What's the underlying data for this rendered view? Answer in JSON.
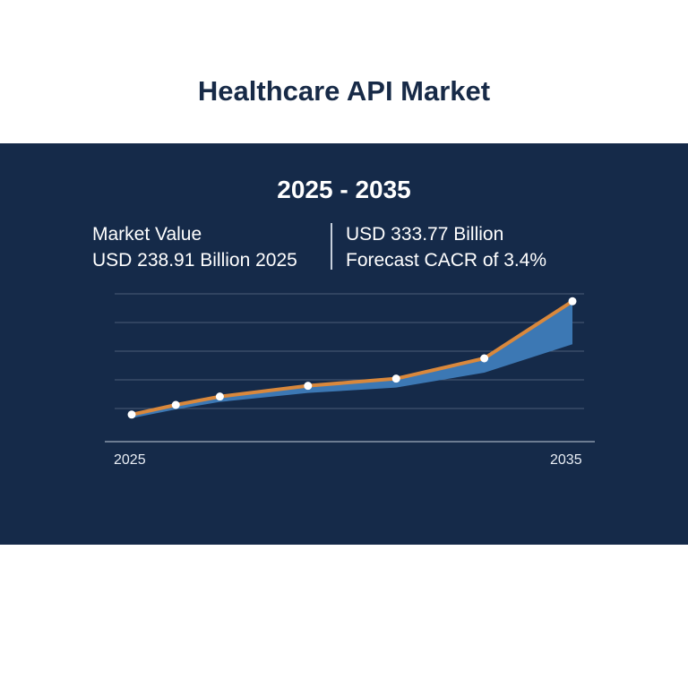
{
  "title": "Healthcare API Market",
  "period": "2025 - 2035",
  "stats": {
    "left": {
      "line1": "Market Value",
      "line2": "USD 238.91 Billion 2025"
    },
    "right": {
      "line1": "USD 333.77 Billion",
      "line2": "Forecast CACR of 3.4%"
    }
  },
  "colors": {
    "background": "#ffffff",
    "panel": "#152a49",
    "line": "#d9883c",
    "area": "#3c78b4",
    "grid": "#4a5c78",
    "points": "#ffffff"
  },
  "chart_data": {
    "type": "line",
    "xlabel": "",
    "ylabel": "",
    "tick_labels": [
      "2025",
      "2035"
    ],
    "x": [
      2025,
      2026,
      2027,
      2029,
      2031,
      2033,
      2035
    ],
    "series": [
      {
        "values": [
          238.91,
          247,
          254,
          263,
          269,
          286,
          333.77
        ]
      }
    ],
    "ylim": [
      220,
      340
    ],
    "grid": true,
    "legend": "none"
  }
}
